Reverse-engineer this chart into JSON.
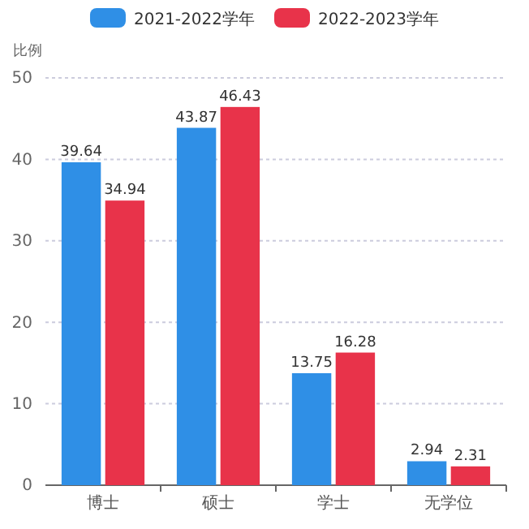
{
  "chart_data": {
    "type": "bar",
    "ylabel": "比例",
    "categories": [
      "博士",
      "硕士",
      "学士",
      "无学位"
    ],
    "series": [
      {
        "name": "2021-2022学年",
        "color": "#2f8fe6",
        "values": [
          39.64,
          43.87,
          13.75,
          2.94
        ]
      },
      {
        "name": "2022-2023学年",
        "color": "#e8334a",
        "values": [
          34.94,
          46.43,
          16.28,
          2.31
        ]
      }
    ],
    "ylim": [
      0,
      50
    ],
    "yticks": [
      0,
      10,
      20,
      30,
      40,
      50
    ],
    "grid": "y",
    "legend": "top",
    "data_labels": true
  }
}
